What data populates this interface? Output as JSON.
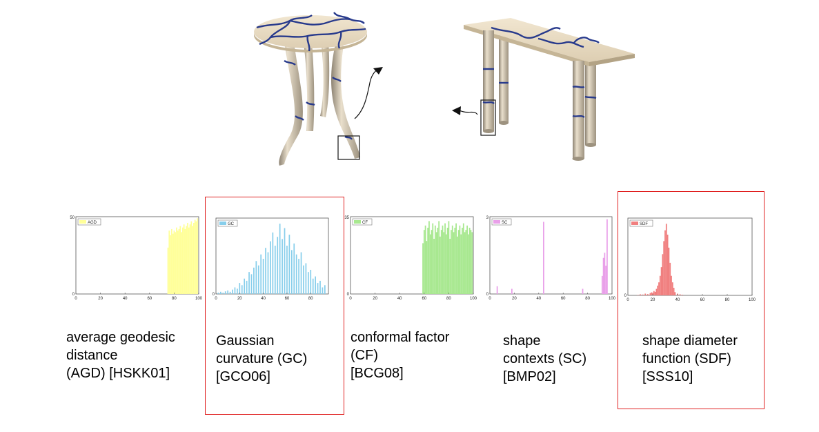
{
  "colors": {
    "AGD": "#ffff99",
    "GC": "#87ceeb",
    "CF": "#a8e890",
    "SC": "#e9a0e9",
    "SDF": "#f07f7f",
    "highlight": "#e02020",
    "segment_line": "#283a8c",
    "surface": "#e8d9bf",
    "shadow": "#b8aa92"
  },
  "illustrations": {
    "left_model": "round-table-model",
    "right_model": "console-table-model",
    "highlight_left": "leg-tip-box",
    "highlight_right": "leg-box"
  },
  "panels": [
    {
      "key": "AGD",
      "caption": "average geodesic\ndistance\n(AGD) [HSKK01]",
      "highlighted": false,
      "chart_data": {
        "type": "bar",
        "legend": "AGD",
        "ylim": [
          0,
          50
        ],
        "y_ticks": [
          "0",
          "50"
        ],
        "xlim": [
          0,
          100
        ],
        "x_ticks": [
          "0",
          "20",
          "40",
          "60",
          "80",
          "100"
        ],
        "x": [
          75,
          76,
          77,
          78,
          79,
          80,
          81,
          82,
          83,
          84,
          85,
          86,
          87,
          88,
          89,
          90,
          91,
          92,
          93,
          94,
          95,
          96,
          97,
          98,
          99
        ],
        "values": [
          30,
          41,
          38,
          42,
          39,
          41,
          40,
          43,
          41,
          42,
          44,
          40,
          43,
          45,
          42,
          44,
          46,
          43,
          45,
          47,
          44,
          46,
          48,
          47,
          49
        ]
      }
    },
    {
      "key": "GC",
      "caption": "Gaussian\ncurvature (GC)\n[GCO06]",
      "highlighted": true,
      "chart_data": {
        "type": "bar",
        "legend": "GC",
        "y_ticks": [
          "0"
        ],
        "xlim": [
          0,
          95
        ],
        "x_ticks": [
          "0",
          "20",
          "40",
          "60",
          "80"
        ],
        "x": [
          2,
          4,
          6,
          8,
          10,
          12,
          14,
          16,
          18,
          20,
          22,
          24,
          26,
          28,
          30,
          32,
          34,
          36,
          38,
          40,
          42,
          44,
          46,
          48,
          50,
          52,
          54,
          56,
          58,
          60,
          62,
          64,
          66,
          68,
          70,
          72,
          74,
          76,
          78,
          80,
          82,
          84,
          86,
          88,
          90,
          92
        ],
        "values": [
          0.3,
          0.5,
          0.3,
          0.6,
          0.8,
          0.5,
          1.0,
          1.5,
          1.2,
          2.5,
          2.0,
          3.5,
          3.0,
          5.0,
          4.5,
          6.0,
          7.5,
          6.5,
          9.0,
          8.0,
          10.5,
          9.5,
          12.0,
          14.0,
          11.0,
          13.0,
          16.0,
          12.5,
          15.0,
          11.0,
          13.5,
          10.0,
          11.5,
          9.0,
          8.0,
          9.5,
          6.5,
          7.0,
          5.0,
          5.5,
          3.5,
          4.0,
          2.5,
          3.0,
          1.5,
          2.0
        ]
      }
    },
    {
      "key": "CF",
      "caption": "conformal factor\n(CF)\n[BCG08]",
      "highlighted": false,
      "chart_data": {
        "type": "bar",
        "legend": "CF",
        "ylim": [
          0,
          35
        ],
        "y_ticks": [
          "0",
          "35"
        ],
        "xlim": [
          0,
          100
        ],
        "x_ticks": [
          "0",
          "20",
          "40",
          "60",
          "80",
          "100"
        ],
        "x": [
          59,
          60,
          61,
          62,
          63,
          64,
          65,
          66,
          67,
          68,
          69,
          70,
          71,
          72,
          73,
          74,
          75,
          76,
          77,
          78,
          79,
          80,
          81,
          82,
          83,
          84,
          85,
          86,
          87,
          88,
          89,
          90,
          91,
          92,
          93,
          94,
          95,
          96,
          97,
          98,
          99
        ],
        "values": [
          23,
          29,
          31,
          24,
          30,
          33,
          27,
          29,
          32,
          25,
          31,
          28,
          30,
          33,
          26,
          29,
          31,
          28,
          32,
          27,
          30,
          33,
          25,
          29,
          31,
          28,
          30,
          32,
          26,
          29,
          31,
          27,
          30,
          32,
          28,
          29,
          31,
          27,
          30,
          29,
          28
        ]
      }
    },
    {
      "key": "SC",
      "caption": "shape\ncontexts (SC)\n[BMP02]",
      "highlighted": false,
      "chart_data": {
        "type": "bar",
        "legend": "SC",
        "ylim": [
          0,
          3
        ],
        "y_ticks": [
          "0",
          "3"
        ],
        "xlim": [
          0,
          100
        ],
        "x_ticks": [
          "0",
          "20",
          "40",
          "60",
          "80",
          "100"
        ],
        "x": [
          6,
          18,
          44,
          76,
          92,
          93,
          94,
          95,
          96
        ],
        "values": [
          0.3,
          0.2,
          2.8,
          0.2,
          0.7,
          1.4,
          1.6,
          1.1,
          2.9
        ]
      }
    },
    {
      "key": "SDF",
      "caption": "shape diameter\nfunction (SDF)\n[SSS10]",
      "highlighted": true,
      "chart_data": {
        "type": "bar",
        "legend": "SDF",
        "y_ticks": [
          "0"
        ],
        "xlim": [
          0,
          100
        ],
        "x_ticks": [
          "0",
          "20",
          "40",
          "60",
          "80",
          "100"
        ],
        "x": [
          8,
          10,
          12,
          14,
          16,
          18,
          19,
          20,
          21,
          22,
          23,
          24,
          25,
          26,
          27,
          28,
          29,
          30,
          31,
          32,
          33,
          34,
          35,
          36,
          37,
          38,
          40,
          42,
          44
        ],
        "values": [
          0.2,
          0.5,
          0.4,
          0.8,
          0.6,
          1.0,
          1.4,
          1.2,
          2.0,
          1.6,
          3.0,
          4.5,
          6.0,
          9.0,
          13.0,
          19.0,
          25.0,
          30.0,
          33.0,
          28.0,
          22.0,
          15.0,
          9.0,
          6.0,
          3.5,
          1.5,
          0.8,
          0.5,
          0.3
        ]
      }
    }
  ]
}
